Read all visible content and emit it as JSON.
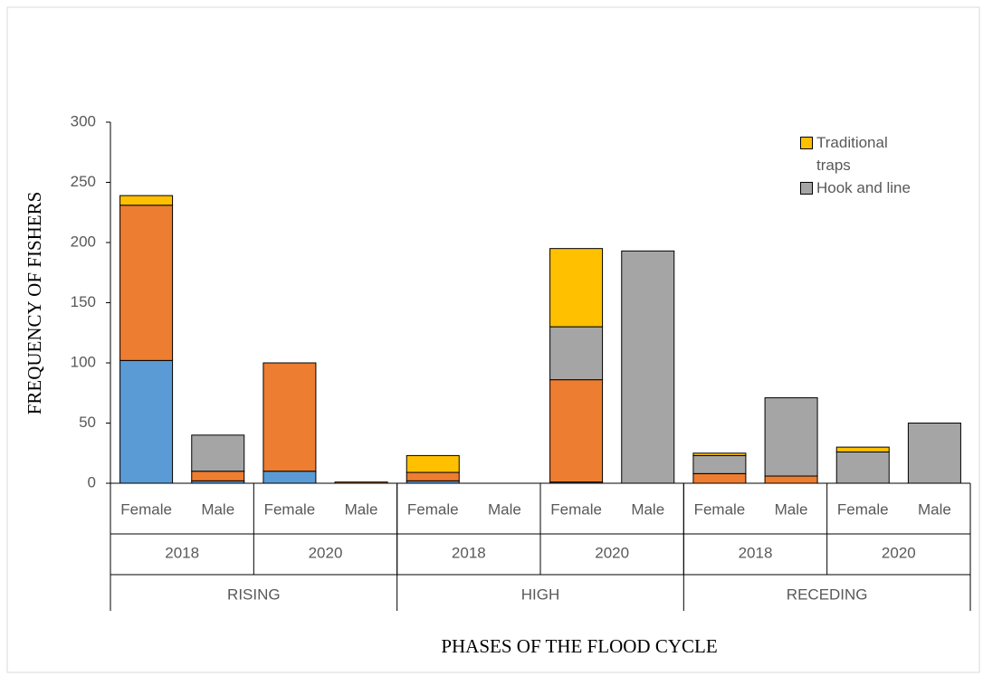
{
  "chart_data": {
    "type": "bar",
    "stacked": true,
    "ylabel": "FREQUENCY OF FISHERS",
    "xlabel": "PHASES OF THE FLOOD CYCLE",
    "categories": [
      "Female",
      "Male",
      "Female",
      "Male",
      "Female",
      "Male",
      "Female",
      "Male",
      "Female",
      "Male",
      "Female",
      "Male"
    ],
    "years": [
      "2018",
      "2020",
      "2018",
      "2020",
      "2018",
      "2020"
    ],
    "phases": [
      "RISING",
      "HIGH",
      "RECEDING"
    ],
    "series": [
      {
        "color": "#5b9bd5",
        "values": [
          102,
          2,
          10,
          0,
          2,
          0,
          1,
          0,
          0,
          0,
          0,
          0
        ]
      },
      {
        "color": "#ed7d31",
        "values": [
          129,
          8,
          90,
          1,
          7,
          0,
          85,
          0,
          8,
          6,
          0,
          0
        ]
      },
      {
        "name": "Hook and line",
        "color": "#a5a5a5",
        "values": [
          0,
          30,
          0,
          0,
          0,
          0,
          44,
          193,
          15,
          65,
          26,
          50
        ]
      },
      {
        "name": "Traditional traps",
        "color": "#ffc000",
        "values": [
          8,
          0,
          0,
          0,
          14,
          0,
          65,
          0,
          2,
          0,
          4,
          0
        ]
      }
    ],
    "ylim": [
      0,
      300
    ],
    "yticks": [
      0,
      50,
      100,
      150,
      200,
      250,
      300
    ],
    "legend": "top-right"
  }
}
